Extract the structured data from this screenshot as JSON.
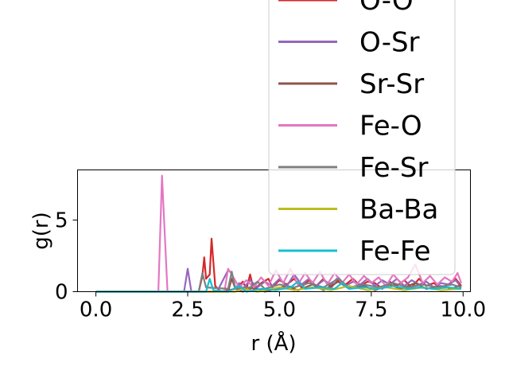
{
  "chart_data": {
    "type": "line",
    "title": "",
    "xlabel": "r (Å)",
    "ylabel": "g(r)",
    "xlim": [
      -0.5,
      10.2
    ],
    "ylim": [
      0,
      8.5
    ],
    "xticks": [
      {
        "value": 0.0,
        "label": "0.0"
      },
      {
        "value": 2.5,
        "label": "2.5"
      },
      {
        "value": 5.0,
        "label": "5.0"
      },
      {
        "value": 7.5,
        "label": "7.5"
      },
      {
        "value": 10.0,
        "label": "10.0"
      }
    ],
    "yticks": [
      {
        "value": 0,
        "label": "0"
      },
      {
        "value": 5,
        "label": "5"
      }
    ],
    "grid": false,
    "legend_position": "upper-right, overflowing the top of the axes",
    "series": [
      {
        "name": "O-O",
        "color": "#d62728",
        "points": [
          [
            0,
            0
          ],
          [
            2.8,
            0
          ],
          [
            2.9,
            1.1
          ],
          [
            2.95,
            2.4
          ],
          [
            3.0,
            0.9
          ],
          [
            3.1,
            1.2
          ],
          [
            3.15,
            3.7
          ],
          [
            3.25,
            0.4
          ],
          [
            3.4,
            0
          ],
          [
            3.8,
            0.2
          ],
          [
            4.0,
            0.7
          ],
          [
            4.1,
            0.2
          ],
          [
            4.2,
            1.2
          ],
          [
            4.3,
            0.1
          ],
          [
            4.5,
            0.6
          ],
          [
            4.7,
            0.9
          ],
          [
            4.8,
            0.3
          ],
          [
            5.0,
            0.8
          ],
          [
            5.2,
            0.5
          ],
          [
            5.4,
            0.9
          ],
          [
            5.6,
            0.3
          ],
          [
            5.8,
            0.8
          ],
          [
            6.0,
            0.4
          ],
          [
            6.2,
            0.9
          ],
          [
            6.4,
            0.3
          ],
          [
            6.6,
            0.8
          ],
          [
            6.8,
            0.5
          ],
          [
            7.0,
            0.9
          ],
          [
            7.2,
            0.4
          ],
          [
            7.4,
            0.7
          ],
          [
            7.6,
            0.6
          ],
          [
            7.8,
            0.2
          ],
          [
            8.0,
            0.7
          ],
          [
            8.2,
            0.4
          ],
          [
            8.4,
            0.8
          ],
          [
            8.6,
            0.3
          ],
          [
            8.8,
            0.9
          ],
          [
            9.0,
            0.4
          ],
          [
            9.2,
            0.6
          ],
          [
            9.4,
            0.3
          ],
          [
            9.6,
            0.5
          ],
          [
            9.8,
            0.9
          ],
          [
            9.95,
            0.4
          ]
        ]
      },
      {
        "name": "O-Sr",
        "color": "#9467bd",
        "points": [
          [
            0,
            0
          ],
          [
            2.4,
            0
          ],
          [
            2.5,
            1.6
          ],
          [
            2.6,
            0
          ],
          [
            3.3,
            0
          ],
          [
            3.6,
            1.5
          ],
          [
            3.7,
            1.3
          ],
          [
            3.8,
            0.2
          ],
          [
            3.9,
            0.6
          ],
          [
            4.0,
            0.2
          ],
          [
            4.2,
            0.8
          ],
          [
            4.4,
            0.3
          ],
          [
            4.6,
            0.7
          ],
          [
            4.8,
            0.4
          ],
          [
            5.0,
            0.9
          ],
          [
            5.2,
            0.4
          ],
          [
            5.4,
            1.2
          ],
          [
            5.6,
            0.5
          ],
          [
            5.8,
            0.9
          ],
          [
            6.0,
            0.4
          ],
          [
            6.2,
            0.8
          ],
          [
            6.4,
            0.5
          ],
          [
            6.6,
            1.0
          ],
          [
            6.8,
            0.4
          ],
          [
            7.0,
            0.7
          ],
          [
            7.2,
            0.5
          ],
          [
            7.4,
            0.9
          ],
          [
            7.6,
            0.4
          ],
          [
            7.8,
            0.8
          ],
          [
            8.0,
            0.5
          ],
          [
            8.2,
            0.9
          ],
          [
            8.4,
            0.4
          ],
          [
            8.6,
            0.8
          ],
          [
            8.8,
            0.5
          ],
          [
            9.0,
            0.7
          ],
          [
            9.2,
            0.3
          ],
          [
            9.4,
            0.6
          ],
          [
            9.6,
            0.5
          ],
          [
            9.8,
            0.8
          ],
          [
            9.95,
            0.3
          ]
        ]
      },
      {
        "name": "Sr-Sr",
        "color": "#8c564b",
        "points": [
          [
            0,
            0
          ],
          [
            3.6,
            0
          ],
          [
            3.7,
            0.9
          ],
          [
            3.8,
            0.2
          ],
          [
            4.0,
            0
          ],
          [
            4.3,
            0.3
          ],
          [
            4.6,
            0
          ],
          [
            5.2,
            0.4
          ],
          [
            5.5,
            0.1
          ],
          [
            5.9,
            0.5
          ],
          [
            6.2,
            0.1
          ],
          [
            6.6,
            0.7
          ],
          [
            6.9,
            0.2
          ],
          [
            7.3,
            0.4
          ],
          [
            7.6,
            0.1
          ],
          [
            8.0,
            0.5
          ],
          [
            8.3,
            0.2
          ],
          [
            8.7,
            0.6
          ],
          [
            9.0,
            0.2
          ],
          [
            9.4,
            0.4
          ],
          [
            9.7,
            0.2
          ],
          [
            9.95,
            0.5
          ]
        ]
      },
      {
        "name": "Fe-O",
        "color": "#e377c2",
        "points": [
          [
            0,
            0
          ],
          [
            1.7,
            0
          ],
          [
            1.8,
            8.1
          ],
          [
            1.95,
            0
          ],
          [
            3.5,
            0
          ],
          [
            3.6,
            1.6
          ],
          [
            3.7,
            1.2
          ],
          [
            3.9,
            0.3
          ],
          [
            4.1,
            0.8
          ],
          [
            4.3,
            0.3
          ],
          [
            4.5,
            1.0
          ],
          [
            4.7,
            0.4
          ],
          [
            4.9,
            1.5
          ],
          [
            5.1,
            0.6
          ],
          [
            5.3,
            1.6
          ],
          [
            5.5,
            0.5
          ],
          [
            5.7,
            1.3
          ],
          [
            5.9,
            0.6
          ],
          [
            6.1,
            1.4
          ],
          [
            6.3,
            0.5
          ],
          [
            6.5,
            1.3
          ],
          [
            6.7,
            0.6
          ],
          [
            6.9,
            1.2
          ],
          [
            7.1,
            0.5
          ],
          [
            7.3,
            1.1
          ],
          [
            7.5,
            0.6
          ],
          [
            7.7,
            1.0
          ],
          [
            7.9,
            0.4
          ],
          [
            8.1,
            1.2
          ],
          [
            8.3,
            0.6
          ],
          [
            8.5,
            1.0
          ],
          [
            8.7,
            1.9
          ],
          [
            8.9,
            0.6
          ],
          [
            9.1,
            1.1
          ],
          [
            9.3,
            0.5
          ],
          [
            9.5,
            1.0
          ],
          [
            9.7,
            0.7
          ],
          [
            9.85,
            1.3
          ],
          [
            9.95,
            0.6
          ]
        ]
      },
      {
        "name": "Fe-Sr",
        "color": "#7f7f7f",
        "points": [
          [
            0,
            0
          ],
          [
            2.8,
            0
          ],
          [
            2.9,
            1.3
          ],
          [
            3.0,
            0.3
          ],
          [
            3.6,
            0.2
          ],
          [
            3.7,
            1.4
          ],
          [
            3.8,
            0.2
          ],
          [
            4.2,
            0.3
          ],
          [
            4.4,
            0.7
          ],
          [
            4.6,
            0.2
          ],
          [
            5.0,
            0.5
          ],
          [
            5.4,
            0.3
          ],
          [
            5.8,
            0.6
          ],
          [
            6.2,
            0.3
          ],
          [
            6.6,
            0.9
          ],
          [
            6.9,
            0.3
          ],
          [
            7.3,
            0.5
          ],
          [
            7.7,
            0.3
          ],
          [
            8.1,
            0.6
          ],
          [
            8.5,
            0.3
          ],
          [
            8.9,
            0.5
          ],
          [
            9.3,
            0.3
          ],
          [
            9.7,
            0.5
          ],
          [
            9.95,
            0.3
          ]
        ]
      },
      {
        "name": "Ba-Ba",
        "color": "#bcbd22",
        "points": [
          [
            0,
            0
          ],
          [
            3.8,
            0
          ],
          [
            4.0,
            0.2
          ],
          [
            4.4,
            0
          ],
          [
            5.0,
            0.3
          ],
          [
            5.4,
            0.1
          ],
          [
            5.9,
            0.3
          ],
          [
            6.4,
            0.1
          ],
          [
            6.9,
            0.4
          ],
          [
            7.4,
            0.1
          ],
          [
            7.9,
            0.3
          ],
          [
            8.4,
            0.1
          ],
          [
            8.9,
            0.3
          ],
          [
            9.4,
            0.1
          ],
          [
            9.95,
            0.2
          ]
        ]
      },
      {
        "name": "Fe-Fe",
        "color": "#17becf",
        "points": [
          [
            0,
            0
          ],
          [
            3.0,
            0
          ],
          [
            3.1,
            0.9
          ],
          [
            3.2,
            0.1
          ],
          [
            3.6,
            0
          ],
          [
            3.9,
            0.4
          ],
          [
            4.1,
            0
          ],
          [
            4.5,
            0.2
          ],
          [
            4.9,
            0.1
          ],
          [
            5.3,
            0.3
          ],
          [
            5.5,
            0.7
          ],
          [
            5.7,
            0.2
          ],
          [
            6.1,
            0.3
          ],
          [
            6.5,
            0.2
          ],
          [
            6.7,
            0.6
          ],
          [
            6.9,
            0.2
          ],
          [
            7.3,
            0.3
          ],
          [
            7.7,
            0.2
          ],
          [
            8.1,
            0.4
          ],
          [
            8.5,
            0.2
          ],
          [
            8.8,
            0.3
          ],
          [
            9.2,
            0.2
          ],
          [
            9.6,
            0.3
          ],
          [
            9.95,
            0.2
          ]
        ]
      }
    ]
  }
}
